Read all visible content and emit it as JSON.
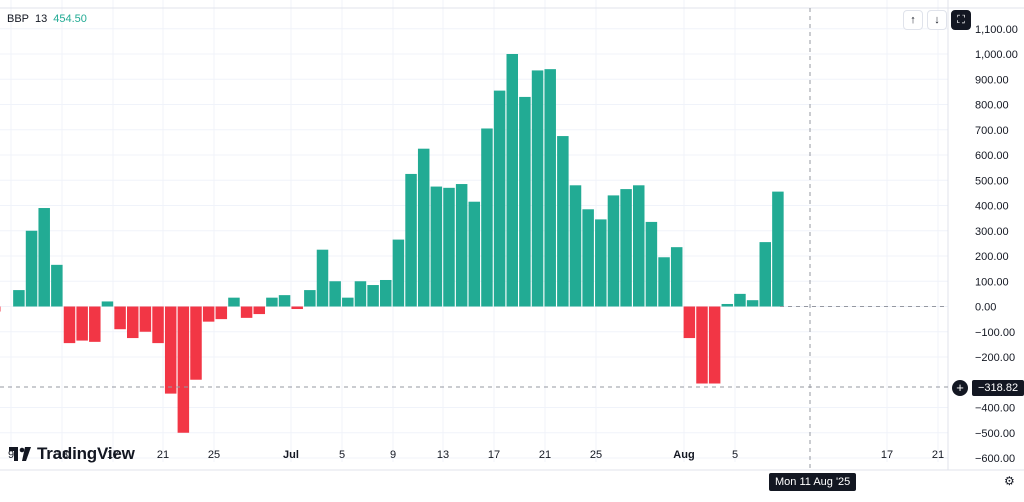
{
  "indicator": {
    "name": "BBP",
    "param": "13",
    "value": "454.50"
  },
  "toolbar": {
    "up_icon": "arrow-up-icon",
    "up_glyph": "↑",
    "down_icon": "arrow-down-icon",
    "down_glyph": "↓",
    "fullscreen_icon": "fullscreen-icon",
    "fullscreen_glyph": "⛶"
  },
  "crosshair": {
    "date_label": "Mon 11 Aug '25",
    "price_label": "−318.82",
    "plus_glyph": "+"
  },
  "branding": {
    "name": "TradingView"
  },
  "colors": {
    "positive": "#22ab94",
    "negative": "#f23645",
    "grid": "#f0f3fa",
    "text": "#131722"
  },
  "chart_data": {
    "type": "bar",
    "x_tick_labels": [
      "9",
      "13",
      "17",
      "21",
      "25",
      "Jul",
      "5",
      "9",
      "13",
      "17",
      "21",
      "25",
      "Aug",
      "5",
      "17",
      "21"
    ],
    "y_tick_labels": [
      "1,100.00",
      "1,000.00",
      "900.00",
      "800.00",
      "700.00",
      "600.00",
      "500.00",
      "400.00",
      "300.00",
      "200.00",
      "100.00",
      "0.00",
      "−100.00",
      "−200.00",
      "−400.00",
      "−500.00",
      "−600.00"
    ],
    "ylim": [
      -600,
      1100
    ],
    "values": [
      -20,
      65,
      300,
      390,
      165,
      -145,
      -135,
      -140,
      20,
      -90,
      -125,
      -100,
      -145,
      -345,
      -500,
      -290,
      -60,
      -50,
      35,
      -45,
      -30,
      35,
      45,
      -10,
      65,
      225,
      100,
      35,
      100,
      85,
      105,
      265,
      525,
      625,
      475,
      470,
      485,
      415,
      705,
      855,
      1000,
      830,
      935,
      940,
      675,
      480,
      385,
      345,
      440,
      465,
      480,
      335,
      195,
      235,
      -125,
      -305,
      -305,
      10,
      50,
      25,
      255,
      455
    ],
    "crosshair_value": -318.82,
    "grid": true
  }
}
